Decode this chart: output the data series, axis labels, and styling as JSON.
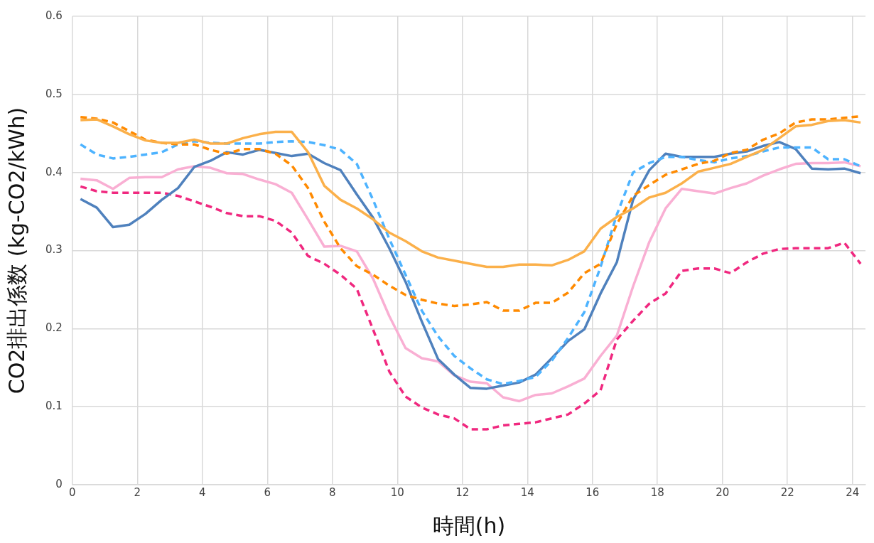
{
  "chart_data": {
    "type": "line",
    "xlabel": "時間(h)",
    "ylabel": "CO2排出係数 (kg-CO2/kWh)",
    "x": [
      0.25,
      0.75,
      1.25,
      1.75,
      2.25,
      2.75,
      3.25,
      3.75,
      4.25,
      4.75,
      5.25,
      5.75,
      6.25,
      6.75,
      7.25,
      7.75,
      8.25,
      8.75,
      9.25,
      9.75,
      10.25,
      10.75,
      11.25,
      11.75,
      12.25,
      12.75,
      13.25,
      13.75,
      14.25,
      14.75,
      15.25,
      15.75,
      16.25,
      16.75,
      17.25,
      17.75,
      18.25,
      18.75,
      19.25,
      19.75,
      20.25,
      20.75,
      21.25,
      21.75,
      22.25,
      22.75,
      23.25,
      23.75,
      24.25
    ],
    "xlim": [
      0,
      24.4
    ],
    "xticks": [
      0,
      2,
      4,
      6,
      8,
      10,
      12,
      14,
      16,
      18,
      20,
      22,
      24
    ],
    "ylim": [
      0,
      0.6
    ],
    "yticks": [
      0,
      0.1,
      0.2,
      0.3,
      0.4,
      0.5,
      0.6
    ],
    "grid": true,
    "legend": false,
    "marker": "none",
    "series": [
      {
        "color": "#fbb04a",
        "line_style": "solid",
        "values": [
          0.467,
          0.468,
          0.459,
          0.449,
          0.441,
          0.438,
          0.438,
          0.442,
          0.437,
          0.437,
          0.444,
          0.449,
          0.452,
          0.452,
          0.426,
          0.383,
          0.365,
          0.354,
          0.34,
          0.323,
          0.312,
          0.299,
          0.291,
          0.287,
          0.283,
          0.279,
          0.279,
          0.282,
          0.282,
          0.281,
          0.288,
          0.299,
          0.328,
          0.343,
          0.354,
          0.368,
          0.374,
          0.386,
          0.401,
          0.406,
          0.411,
          0.42,
          0.429,
          0.444,
          0.459,
          0.461,
          0.466,
          0.467,
          0.464
        ]
      },
      {
        "color": "#ff8a00",
        "line_style": "dashed",
        "values": [
          0.471,
          0.469,
          0.464,
          0.453,
          0.442,
          0.438,
          0.436,
          0.436,
          0.429,
          0.424,
          0.43,
          0.43,
          0.424,
          0.409,
          0.38,
          0.337,
          0.303,
          0.28,
          0.269,
          0.255,
          0.243,
          0.237,
          0.232,
          0.229,
          0.231,
          0.234,
          0.223,
          0.223,
          0.233,
          0.233,
          0.246,
          0.271,
          0.283,
          0.334,
          0.37,
          0.384,
          0.397,
          0.404,
          0.411,
          0.415,
          0.425,
          0.429,
          0.442,
          0.45,
          0.464,
          0.468,
          0.468,
          0.47,
          0.472
        ]
      },
      {
        "color": "#4db3ff",
        "line_style": "dashed",
        "values": [
          0.436,
          0.423,
          0.418,
          0.42,
          0.423,
          0.426,
          0.436,
          0.44,
          0.438,
          0.437,
          0.437,
          0.437,
          0.439,
          0.44,
          0.439,
          0.435,
          0.429,
          0.411,
          0.365,
          0.315,
          0.269,
          0.223,
          0.19,
          0.165,
          0.149,
          0.135,
          0.129,
          0.133,
          0.138,
          0.159,
          0.188,
          0.221,
          0.279,
          0.346,
          0.4,
          0.412,
          0.42,
          0.42,
          0.416,
          0.413,
          0.418,
          0.421,
          0.427,
          0.432,
          0.432,
          0.432,
          0.417,
          0.417,
          0.408
        ]
      },
      {
        "color": "#4f81bd",
        "line_style": "solid",
        "values": [
          0.366,
          0.355,
          0.33,
          0.333,
          0.347,
          0.365,
          0.38,
          0.407,
          0.415,
          0.426,
          0.423,
          0.429,
          0.425,
          0.421,
          0.424,
          0.412,
          0.403,
          0.372,
          0.342,
          0.303,
          0.26,
          0.209,
          0.161,
          0.141,
          0.124,
          0.123,
          0.127,
          0.131,
          0.141,
          0.162,
          0.184,
          0.199,
          0.245,
          0.285,
          0.365,
          0.403,
          0.424,
          0.42,
          0.42,
          0.42,
          0.424,
          0.427,
          0.434,
          0.439,
          0.43,
          0.405,
          0.404,
          0.405,
          0.399
        ]
      },
      {
        "color": "#f9afd3",
        "line_style": "solid",
        "values": [
          0.392,
          0.39,
          0.379,
          0.393,
          0.394,
          0.394,
          0.404,
          0.408,
          0.406,
          0.399,
          0.398,
          0.391,
          0.385,
          0.374,
          0.34,
          0.305,
          0.306,
          0.299,
          0.264,
          0.216,
          0.175,
          0.162,
          0.158,
          0.14,
          0.132,
          0.13,
          0.112,
          0.107,
          0.115,
          0.117,
          0.126,
          0.136,
          0.165,
          0.191,
          0.254,
          0.311,
          0.354,
          0.379,
          0.376,
          0.373,
          0.38,
          0.386,
          0.396,
          0.404,
          0.411,
          0.412,
          0.412,
          0.413,
          0.408
        ]
      },
      {
        "color": "#f0287f",
        "line_style": "dashed",
        "values": [
          0.382,
          0.376,
          0.374,
          0.374,
          0.374,
          0.374,
          0.37,
          0.363,
          0.356,
          0.348,
          0.344,
          0.344,
          0.338,
          0.323,
          0.293,
          0.283,
          0.269,
          0.251,
          0.199,
          0.145,
          0.113,
          0.099,
          0.09,
          0.085,
          0.071,
          0.071,
          0.076,
          0.078,
          0.08,
          0.085,
          0.09,
          0.104,
          0.121,
          0.186,
          0.21,
          0.232,
          0.245,
          0.274,
          0.277,
          0.277,
          0.271,
          0.285,
          0.296,
          0.302,
          0.303,
          0.303,
          0.303,
          0.31,
          0.283
        ]
      }
    ]
  }
}
